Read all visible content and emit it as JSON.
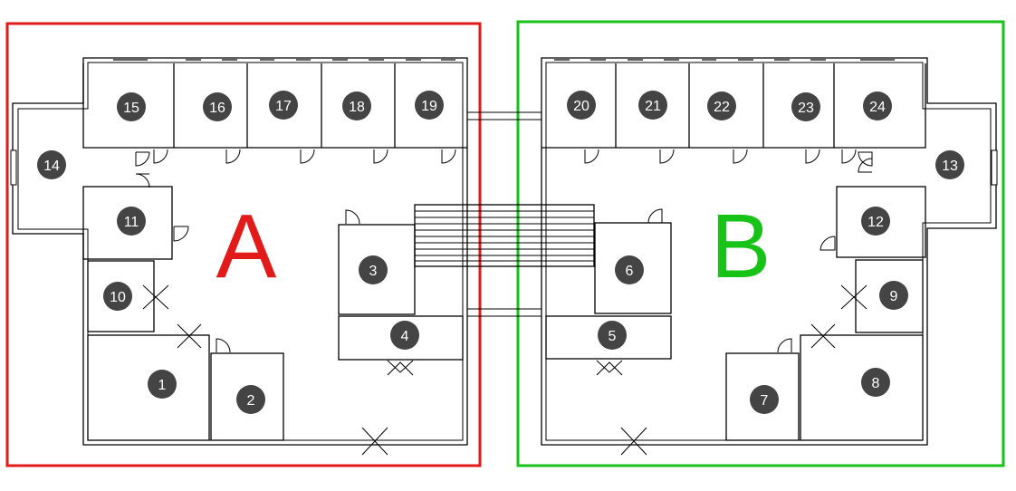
{
  "zones": {
    "a": {
      "label": "A",
      "color": "#e21a1a"
    },
    "b": {
      "label": "B",
      "color": "#17c317"
    }
  },
  "rooms": [
    "1",
    "2",
    "3",
    "4",
    "5",
    "6",
    "7",
    "8",
    "9",
    "10",
    "11",
    "12",
    "13",
    "14",
    "15",
    "16",
    "17",
    "18",
    "19",
    "20",
    "21",
    "22",
    "23",
    "24"
  ],
  "colors": {
    "badge": "#444444",
    "wall": "#000000"
  }
}
